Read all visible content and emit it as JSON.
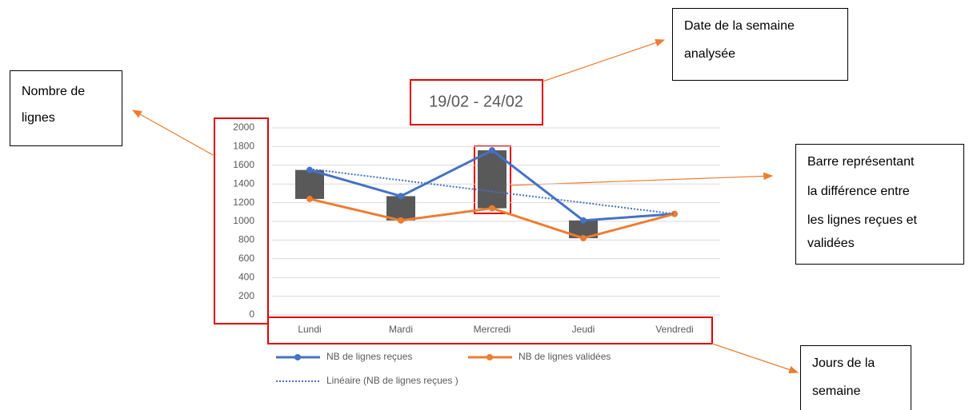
{
  "chart_data": {
    "type": "line",
    "title": "19/02 - 24/02",
    "categories": [
      "Lundi",
      "Mardi",
      "Mercredi",
      "Jeudi",
      "Vendredi"
    ],
    "series": [
      {
        "name": "NB de lignes reçues",
        "color": "#4472c4",
        "values": [
          1550,
          1270,
          1760,
          1010,
          1080
        ]
      },
      {
        "name": "NB de lignes validées",
        "color": "#ed7d31",
        "values": [
          1240,
          1010,
          1140,
          820,
          1080
        ]
      },
      {
        "name": "Linéaire (NB de lignes reçues )",
        "color": "#4472c4",
        "dash": true,
        "values": [
          1560,
          1440,
          1320,
          1200,
          1080
        ]
      }
    ],
    "up_down_bars": {
      "color": "#595959"
    },
    "ylim": [
      0,
      2000
    ],
    "yticks": [
      0,
      200,
      400,
      600,
      800,
      1000,
      1200,
      1400,
      1600,
      1800,
      2000
    ],
    "grid": true
  },
  "annotations": [
    {
      "lines": [
        "Nombre de",
        "lignes"
      ]
    },
    {
      "lines": [
        "Date de la semaine",
        "analysée"
      ]
    },
    {
      "lines": [
        "Barre représentant",
        "la différence entre",
        "les lignes reçues et",
        "validées"
      ]
    },
    {
      "lines": [
        "Jours de la",
        "semaine"
      ]
    }
  ]
}
